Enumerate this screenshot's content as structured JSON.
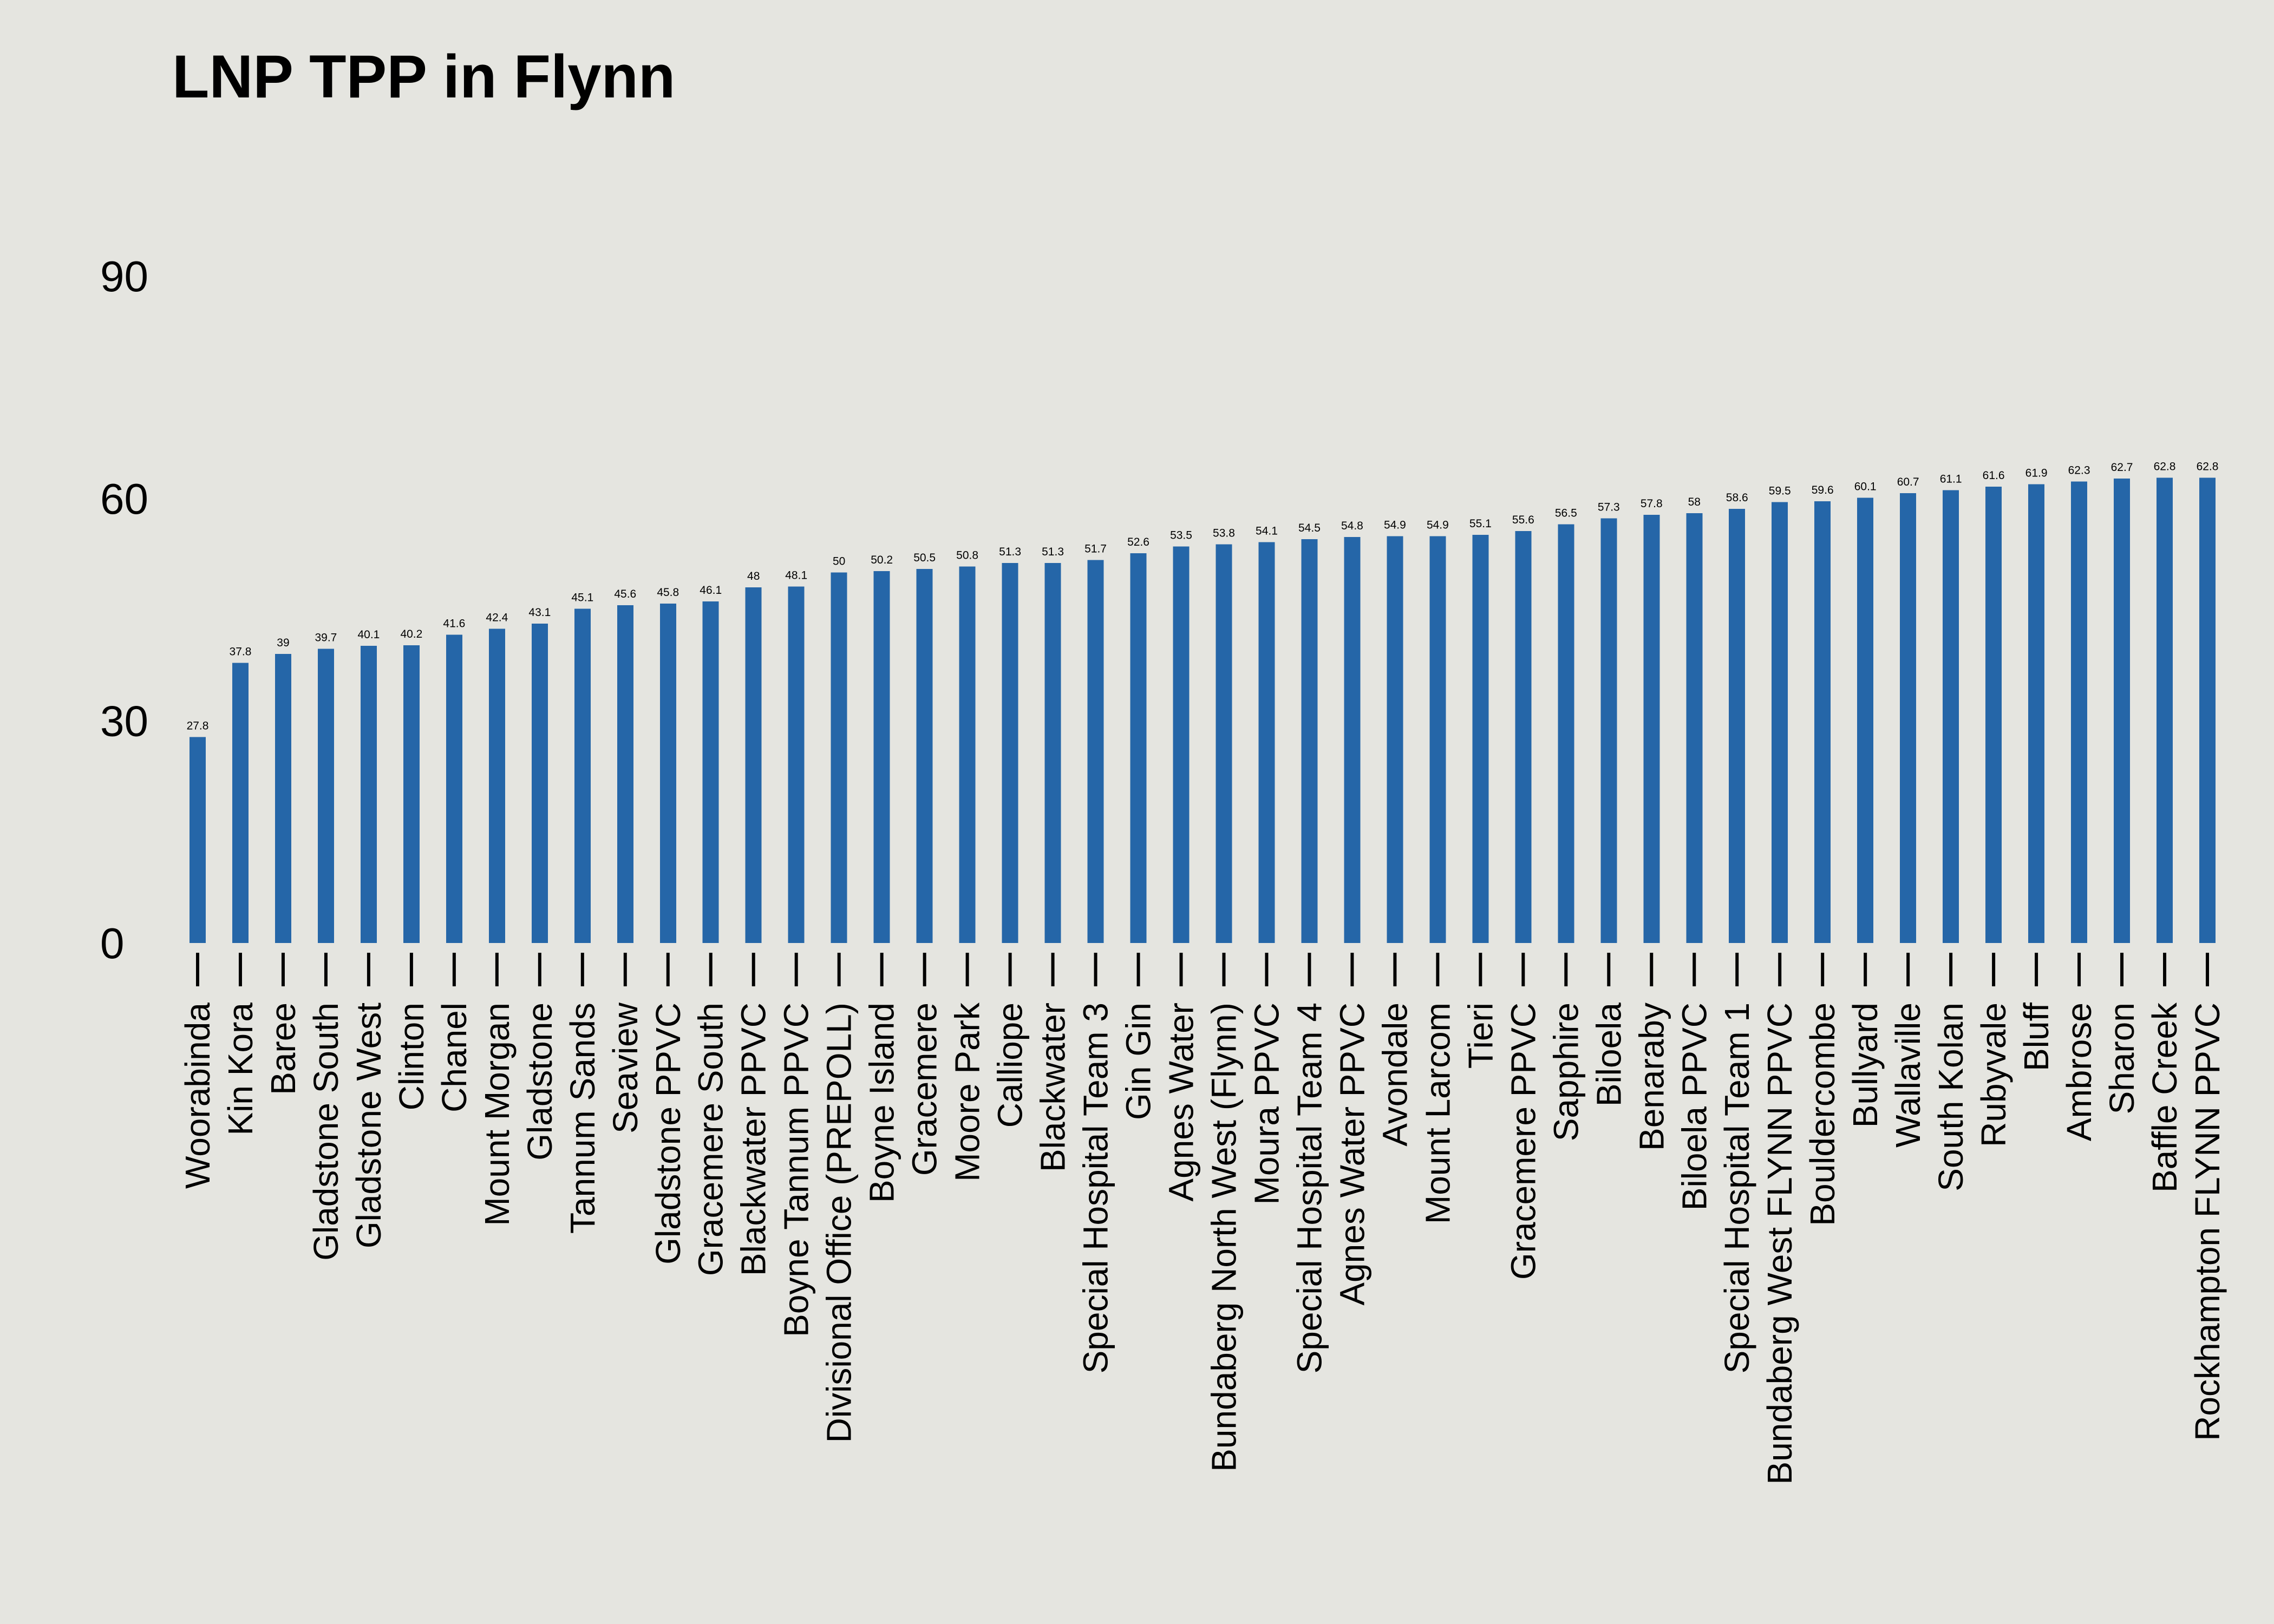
{
  "chart_data": {
    "type": "bar",
    "title": "LNP TPP in Flynn",
    "xlabel": "",
    "ylabel": "",
    "ylim": [
      0,
      95
    ],
    "yticks": [
      0,
      30,
      60,
      90
    ],
    "grid": false,
    "bar_color": "#2566A8",
    "background_color": "#E5E5E0",
    "categories": [
      "Woorabinda",
      "Kin Kora",
      "Baree",
      "Gladstone South",
      "Gladstone West",
      "Clinton",
      "Chanel",
      "Mount Morgan",
      "Gladstone",
      "Tannum Sands",
      "Seaview",
      "Gladstone PPVC",
      "Gracemere South",
      "Blackwater PPVC",
      "Boyne Tannum PPVC",
      "Divisional Office (PREPOLL)",
      "Boyne Island",
      "Gracemere",
      "Moore Park",
      "Calliope",
      "Blackwater",
      "Special Hospital Team 3",
      "Gin Gin",
      "Agnes Water",
      "Bundaberg North West (Flynn)",
      "Moura PPVC",
      "Special Hospital Team 4",
      "Agnes Water PPVC",
      "Avondale",
      "Mount Larcom",
      "Tieri",
      "Gracemere PPVC",
      "Sapphire",
      "Biloela",
      "Benaraby",
      "Biloela PPVC",
      "Special Hospital Team 1",
      "Bundaberg West FLYNN PPVC",
      "Bouldercombe",
      "Bullyard",
      "Wallaville",
      "South Kolan",
      "Rubyvale",
      "Bluff",
      "Ambrose",
      "Sharon",
      "Baffle Creek",
      "Rockhampton FLYNN PPVC"
    ],
    "values": [
      27.8,
      37.8,
      39,
      39.7,
      40.1,
      40.2,
      41.6,
      42.4,
      43.1,
      45.1,
      45.6,
      45.8,
      46.1,
      48,
      48.1,
      50,
      50.2,
      50.5,
      50.8,
      51.3,
      51.3,
      51.7,
      52.6,
      53.5,
      53.8,
      54.1,
      54.5,
      54.8,
      54.9,
      54.9,
      55.1,
      55.6,
      56.5,
      57.3,
      57.8,
      58,
      58.6,
      59.5,
      59.6,
      60.1,
      60.7,
      61.1,
      61.6,
      61.9,
      62.3,
      62.7,
      62.8,
      62.8
    ]
  }
}
